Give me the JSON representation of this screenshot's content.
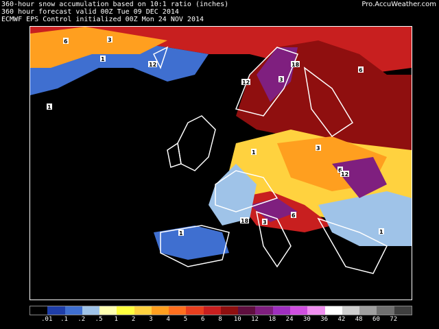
{
  "header": {
    "line1": "360-hour snow accumulation based on 10:1 ratio (inches)",
    "line2": "360 hour forecast valid 00Z Tue 09 DEC 2014",
    "line3": "ECMWF EPS Control initialized 00Z Mon 24 NOV 2014",
    "brand": "Pro.AccuWeather.com"
  },
  "legend": {
    "colors": [
      "#000000",
      "#1f3ea8",
      "#3f6fd0",
      "#9fc3e8",
      "#ffffb0",
      "#ffff3f",
      "#ffd23f",
      "#ff9f1f",
      "#ff6f1f",
      "#e83f1f",
      "#c81f1f",
      "#8f0f0f",
      "#5f0f3f",
      "#7f1f7f",
      "#9f2fbf",
      "#cf4fdf",
      "#ef8fef",
      "#ffffff",
      "#cfcfcf",
      "#9f9f9f",
      "#6f6f6f",
      "#3f3f3f"
    ],
    "ticks": [
      ".01",
      ".1",
      ".2",
      ".5",
      "1",
      "2",
      "3",
      "4",
      "5",
      "6",
      "8",
      "10",
      "12",
      "18",
      "24",
      "30",
      "36",
      "42",
      "48",
      "60",
      "72"
    ]
  },
  "map_labels": [
    "1",
    "3",
    "6",
    "12",
    "18",
    "1",
    "3",
    "6",
    "12",
    "1",
    "3",
    "6",
    "12",
    "18",
    "1",
    "3",
    "6",
    "1"
  ]
}
